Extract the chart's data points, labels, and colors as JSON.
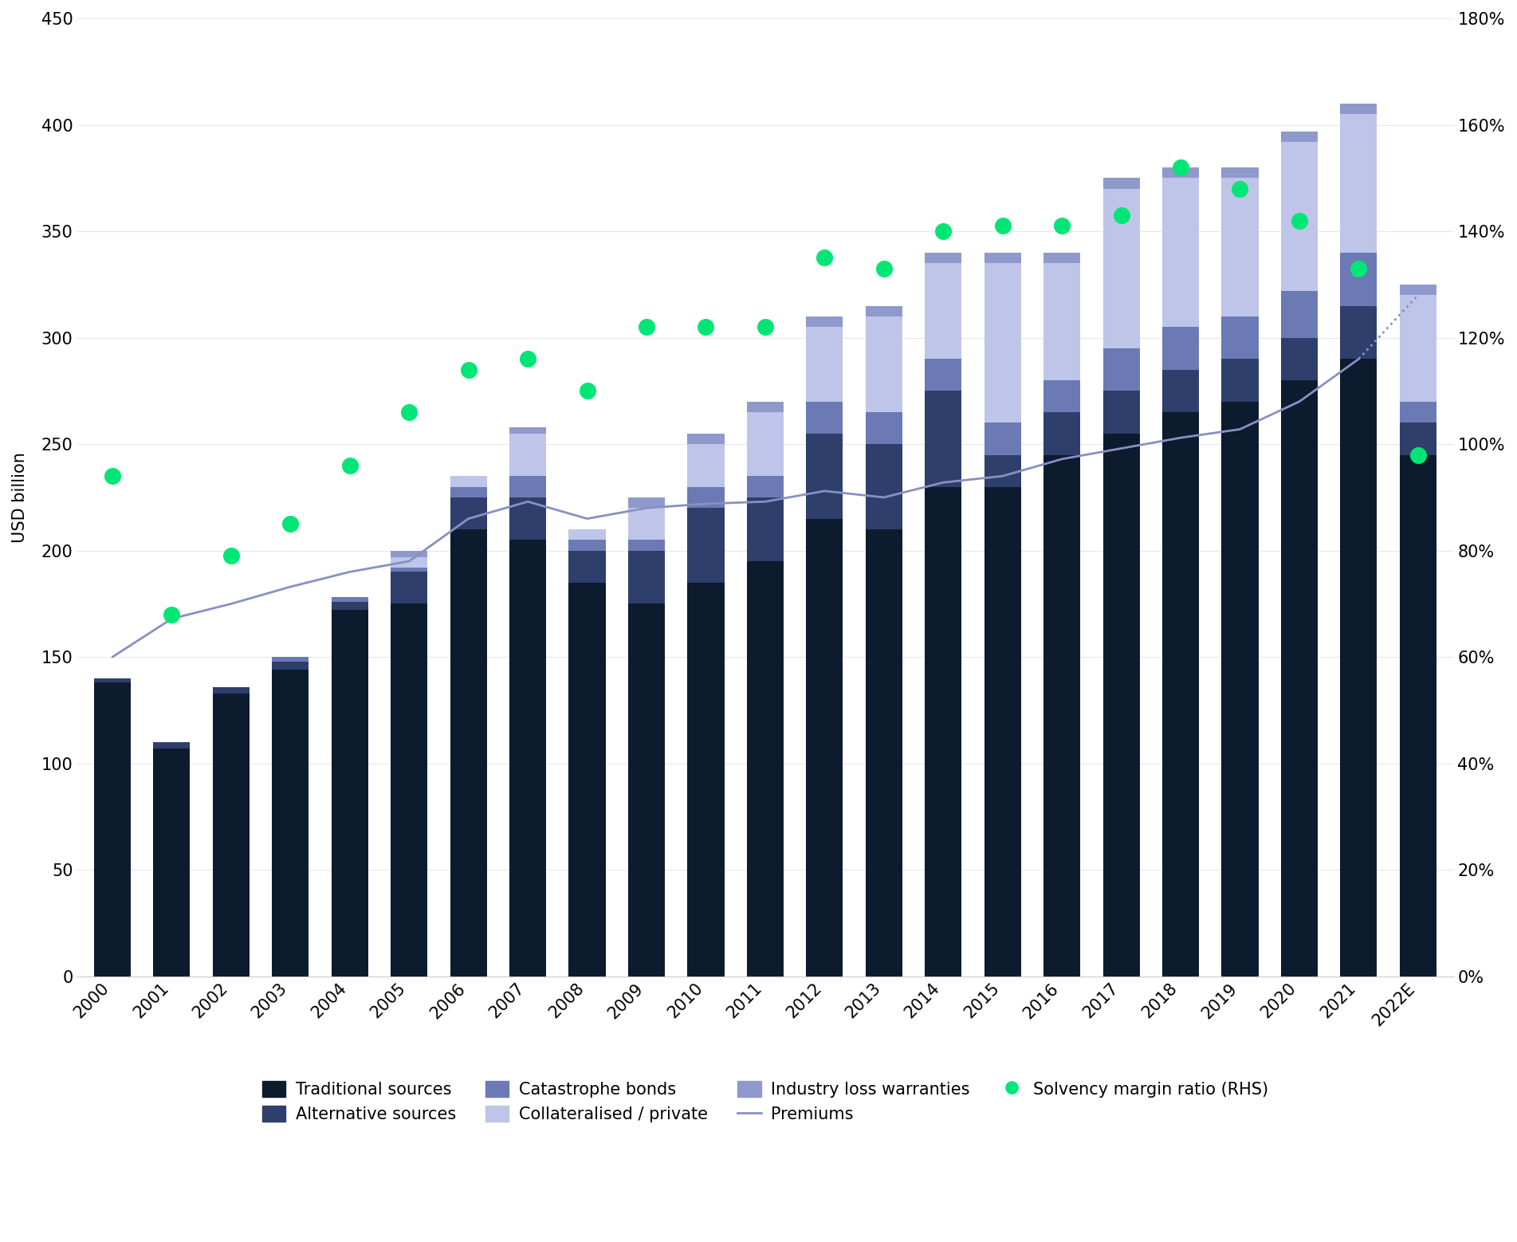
{
  "years": [
    "2000",
    "2001",
    "2002",
    "2003",
    "2004",
    "2005",
    "2006",
    "2007",
    "2008",
    "2009",
    "2010",
    "2011",
    "2012",
    "2013",
    "2014",
    "2015",
    "2016",
    "2017",
    "2018",
    "2019",
    "2020",
    "2021",
    "2022E"
  ],
  "traditional": [
    138,
    107,
    133,
    144,
    172,
    175,
    210,
    205,
    185,
    175,
    185,
    195,
    215,
    210,
    230,
    230,
    245,
    255,
    265,
    270,
    280,
    290,
    245
  ],
  "alternative": [
    2,
    3,
    3,
    4,
    4,
    15,
    15,
    20,
    15,
    25,
    35,
    30,
    40,
    40,
    45,
    15,
    20,
    20,
    20,
    20,
    20,
    25,
    15
  ],
  "cat_bonds": [
    0,
    0,
    0,
    2,
    2,
    2,
    5,
    10,
    5,
    5,
    10,
    10,
    15,
    15,
    15,
    15,
    15,
    20,
    20,
    20,
    22,
    25,
    10
  ],
  "collateralised": [
    0,
    0,
    0,
    0,
    0,
    5,
    5,
    20,
    5,
    15,
    20,
    30,
    35,
    45,
    45,
    75,
    55,
    75,
    70,
    65,
    70,
    65,
    50
  ],
  "ilw": [
    0,
    0,
    0,
    0,
    0,
    3,
    0,
    3,
    0,
    5,
    5,
    5,
    5,
    5,
    5,
    5,
    5,
    5,
    5,
    5,
    5,
    5,
    5
  ],
  "premiums": [
    150,
    168,
    175,
    183,
    190,
    195,
    215,
    223,
    215,
    220,
    222,
    223,
    228,
    225,
    232,
    235,
    243,
    248,
    253,
    257,
    270,
    290,
    320
  ],
  "solvency_pct": [
    94,
    68,
    79,
    85,
    96,
    106,
    114,
    116,
    110,
    122,
    122,
    122,
    135,
    133,
    140,
    141,
    141,
    143,
    152,
    148,
    142,
    133,
    98
  ],
  "colors": {
    "traditional": "#0d1b2e",
    "alternative": "#2e3f6b",
    "cat_bonds": "#6b7ab5",
    "collateralised": "#bec5e8",
    "ilw": "#9099cc",
    "premiums_line": "#8890c4",
    "solvency_dot": "#00e676",
    "background": "#ffffff",
    "grid": "#e8e8e8"
  },
  "ylim_left": [
    0,
    450
  ],
  "ylim_right": [
    0,
    180
  ],
  "yticks_left": [
    0,
    50,
    100,
    150,
    200,
    250,
    300,
    350,
    400,
    450
  ],
  "yticks_right_vals": [
    0,
    20,
    40,
    60,
    80,
    100,
    120,
    140,
    160,
    180
  ],
  "yticks_right_labels": [
    "0%",
    "20%",
    "40%",
    "60%",
    "80%",
    "100%",
    "120%",
    "140%",
    "160%",
    "180%"
  ],
  "ylabel": "USD billion"
}
